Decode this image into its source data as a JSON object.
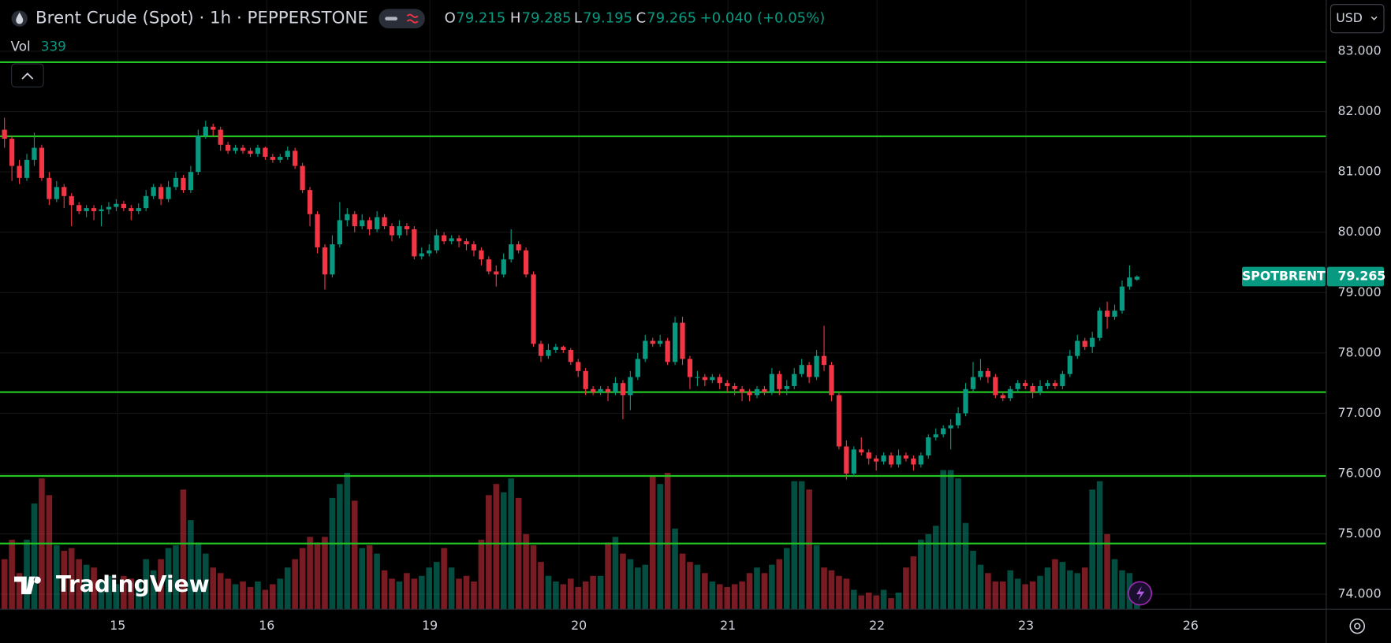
{
  "chart_data": {
    "type": "candlestick",
    "title": "Brent Crude (Spot) · 1h · PEPPERSTONE",
    "ohlc_labels": [
      "O",
      "H",
      "L",
      "C"
    ],
    "change_label": "+0.040 (+0.05%)",
    "volume_label": "Vol",
    "symbol_label": "SPOTBRENT",
    "currency": "USD",
    "logo": "TradingView",
    "up_color": "#089981",
    "down_color": "#f23645",
    "line_color": "#22c322",
    "xlim": [
      -0.6,
      177.4
    ],
    "ylim": [
      73.75,
      83.85
    ],
    "yticks": [
      {
        "value": 74,
        "label": "74.000"
      },
      {
        "value": 75,
        "label": "75.000"
      },
      {
        "value": 76,
        "label": "76.000"
      },
      {
        "value": 77,
        "label": "77.000"
      },
      {
        "value": 78,
        "label": "78.000"
      },
      {
        "value": 79,
        "label": "79.000"
      },
      {
        "value": 80,
        "label": "80.000"
      },
      {
        "value": 81,
        "label": "81.000"
      },
      {
        "value": 82,
        "label": "82.000"
      },
      {
        "value": 83,
        "label": "83.000"
      }
    ],
    "xticks": [
      {
        "value": 15.2,
        "label": "15"
      },
      {
        "value": 35.2,
        "label": "16"
      },
      {
        "value": 57.1,
        "label": "19"
      },
      {
        "value": 77.1,
        "label": "20"
      },
      {
        "value": 97.1,
        "label": "21"
      },
      {
        "value": 117.1,
        "label": "22"
      },
      {
        "value": 137.1,
        "label": "23"
      },
      {
        "value": 159.2,
        "label": "26"
      }
    ],
    "hlines": [
      82.82,
      81.59,
      77.35,
      75.96,
      74.84
    ],
    "open": [
      81.7,
      81.55,
      81.1,
      80.9,
      81.2,
      81.4,
      80.9,
      80.55,
      80.75,
      80.6,
      80.45,
      80.35,
      80.4,
      80.35,
      80.38,
      80.42,
      80.47,
      80.4,
      80.35,
      80.4,
      80.6,
      80.75,
      80.55,
      80.75,
      80.9,
      80.7,
      81.0,
      81.6,
      81.75,
      81.7,
      81.45,
      81.35,
      81.4,
      81.35,
      81.3,
      81.4,
      81.25,
      81.2,
      81.25,
      81.35,
      81.1,
      80.7,
      80.3,
      79.75,
      79.3,
      79.8,
      80.2,
      80.3,
      80.1,
      80.2,
      80.05,
      80.25,
      80.1,
      79.95,
      80.1,
      80.05,
      79.6,
      79.65,
      79.7,
      79.95,
      79.85,
      79.9,
      79.85,
      79.8,
      79.7,
      79.55,
      79.35,
      79.3,
      79.55,
      79.8,
      79.7,
      79.3,
      78.15,
      77.95,
      78.05,
      78.1,
      78.05,
      77.85,
      77.7,
      77.4,
      77.35,
      77.4,
      77.35,
      77.5,
      77.3,
      77.6,
      77.9,
      78.2,
      78.15,
      78.2,
      77.85,
      78.5,
      77.9,
      77.6,
      77.6,
      77.55,
      77.6,
      77.5,
      77.45,
      77.4,
      77.35,
      77.3,
      77.4,
      77.35,
      77.65,
      77.4,
      77.45,
      77.65,
      77.8,
      77.6,
      77.95,
      77.8,
      77.3,
      76.45,
      76.0,
      76.4,
      76.35,
      76.25,
      76.2,
      76.3,
      76.15,
      76.3,
      76.25,
      76.15,
      76.3,
      76.6,
      76.65,
      76.75,
      76.8,
      77.0,
      77.4,
      77.6,
      77.7,
      77.6,
      77.3,
      77.25,
      77.4,
      77.5,
      77.45,
      77.35,
      77.45,
      77.5,
      77.45,
      77.65,
      77.95,
      78.2,
      78.1,
      78.25,
      78.7,
      78.6,
      78.7,
      79.1,
      79.215
    ],
    "high": [
      81.9,
      81.6,
      81.2,
      81.3,
      81.65,
      81.45,
      81.0,
      80.85,
      80.8,
      80.65,
      80.5,
      80.45,
      80.45,
      80.45,
      80.5,
      80.55,
      80.52,
      80.45,
      80.48,
      80.7,
      80.8,
      80.8,
      80.85,
      81.0,
      80.95,
      81.1,
      81.7,
      81.85,
      81.8,
      81.75,
      81.5,
      81.45,
      81.45,
      81.4,
      81.45,
      81.42,
      81.3,
      81.3,
      81.42,
      81.4,
      81.15,
      80.75,
      80.35,
      79.8,
      79.95,
      80.5,
      80.4,
      80.35,
      80.3,
      80.25,
      80.35,
      80.3,
      80.15,
      80.2,
      80.15,
      80.1,
      79.75,
      79.8,
      80.05,
      80.0,
      79.95,
      79.95,
      79.9,
      79.85,
      79.75,
      79.6,
      79.45,
      79.65,
      80.05,
      79.85,
      79.75,
      79.35,
      78.2,
      78.15,
      78.15,
      78.12,
      78.08,
      77.9,
      77.75,
      77.45,
      77.45,
      77.45,
      77.6,
      77.55,
      77.7,
      78.0,
      78.3,
      78.25,
      78.3,
      78.25,
      78.6,
      78.6,
      77.95,
      77.7,
      77.65,
      77.65,
      77.65,
      77.55,
      77.5,
      77.45,
      77.4,
      77.45,
      77.45,
      77.75,
      77.7,
      77.55,
      77.75,
      77.9,
      77.85,
      78.05,
      78.45,
      77.85,
      77.35,
      76.55,
      76.45,
      76.6,
      76.4,
      76.3,
      76.35,
      76.35,
      76.4,
      76.35,
      76.3,
      76.35,
      76.65,
      76.75,
      76.8,
      76.9,
      77.1,
      77.5,
      77.85,
      77.9,
      77.75,
      77.65,
      77.35,
      77.45,
      77.55,
      77.55,
      77.5,
      77.55,
      77.55,
      77.55,
      77.7,
      78.05,
      78.3,
      78.25,
      78.35,
      78.75,
      78.85,
      78.8,
      79.2,
      79.45,
      79.285
    ],
    "low": [
      81.4,
      80.85,
      80.8,
      80.85,
      81.1,
      80.85,
      80.45,
      80.5,
      80.4,
      80.1,
      80.3,
      80.25,
      80.2,
      80.1,
      80.3,
      80.35,
      80.35,
      80.2,
      80.3,
      80.35,
      80.55,
      80.45,
      80.5,
      80.7,
      80.65,
      80.65,
      80.95,
      81.55,
      81.6,
      81.35,
      81.3,
      81.3,
      81.3,
      81.25,
      81.25,
      81.2,
      81.15,
      81.15,
      81.2,
      81.05,
      80.65,
      80.1,
      79.65,
      79.05,
      79.25,
      79.75,
      80.1,
      80.0,
      80.05,
      79.95,
      80.0,
      80.05,
      79.85,
      79.9,
      79.95,
      79.55,
      79.55,
      79.6,
      79.65,
      79.8,
      79.8,
      79.75,
      79.7,
      79.6,
      79.45,
      79.3,
      79.1,
      79.25,
      79.5,
      79.65,
      79.25,
      78.1,
      77.85,
      77.9,
      78.0,
      78.0,
      77.8,
      77.6,
      77.3,
      77.3,
      77.3,
      77.2,
      77.3,
      76.9,
      77.05,
      77.55,
      77.85,
      78.1,
      78.1,
      77.8,
      77.8,
      77.8,
      77.4,
      77.45,
      77.45,
      77.5,
      77.4,
      77.35,
      77.3,
      77.2,
      77.2,
      77.25,
      77.3,
      77.3,
      77.3,
      77.3,
      77.4,
      77.6,
      77.5,
      77.55,
      77.7,
      77.2,
      76.4,
      75.9,
      75.95,
      76.3,
      76.15,
      76.05,
      76.15,
      76.1,
      76.1,
      76.2,
      76.05,
      76.1,
      76.25,
      76.55,
      76.6,
      76.4,
      76.75,
      76.95,
      77.35,
      77.55,
      77.5,
      77.25,
      77.2,
      77.2,
      77.35,
      77.4,
      77.25,
      77.3,
      77.4,
      77.4,
      77.4,
      77.6,
      77.9,
      78.05,
      78.0,
      78.2,
      78.4,
      78.55,
      78.65,
      79.05,
      79.195
    ],
    "close": [
      81.55,
      81.1,
      80.9,
      81.2,
      81.4,
      80.9,
      80.55,
      80.75,
      80.6,
      80.45,
      80.35,
      80.4,
      80.35,
      80.38,
      80.42,
      80.47,
      80.4,
      80.35,
      80.4,
      80.6,
      80.75,
      80.55,
      80.75,
      80.9,
      80.7,
      81.0,
      81.6,
      81.75,
      81.7,
      81.45,
      81.35,
      81.4,
      81.35,
      81.3,
      81.4,
      81.25,
      81.2,
      81.25,
      81.35,
      81.1,
      80.7,
      80.3,
      79.75,
      79.3,
      79.8,
      80.2,
      80.3,
      80.1,
      80.2,
      80.05,
      80.25,
      80.1,
      79.95,
      80.1,
      80.05,
      79.6,
      79.65,
      79.7,
      79.95,
      79.85,
      79.9,
      79.85,
      79.8,
      79.7,
      79.55,
      79.35,
      79.3,
      79.55,
      79.8,
      79.7,
      79.3,
      78.15,
      77.95,
      78.05,
      78.1,
      78.05,
      77.85,
      77.7,
      77.4,
      77.35,
      77.4,
      77.35,
      77.5,
      77.3,
      77.6,
      77.9,
      78.2,
      78.15,
      78.2,
      77.85,
      78.5,
      77.9,
      77.6,
      77.6,
      77.55,
      77.6,
      77.5,
      77.45,
      77.4,
      77.35,
      77.3,
      77.4,
      77.35,
      77.65,
      77.4,
      77.45,
      77.65,
      77.8,
      77.6,
      77.95,
      77.8,
      77.3,
      76.45,
      76.0,
      76.4,
      76.35,
      76.25,
      76.2,
      76.3,
      76.15,
      76.3,
      76.25,
      76.15,
      76.3,
      76.6,
      76.65,
      76.75,
      76.8,
      77.0,
      77.4,
      77.6,
      77.7,
      77.6,
      77.3,
      77.25,
      77.4,
      77.5,
      77.45,
      77.35,
      77.45,
      77.5,
      77.45,
      77.65,
      77.95,
      78.2,
      78.1,
      78.25,
      78.7,
      78.6,
      78.7,
      79.1,
      79.25,
      79.265
    ],
    "volume": [
      1800,
      2500,
      1300,
      2500,
      3800,
      4700,
      4100,
      2300,
      2100,
      2200,
      1800,
      1600,
      1500,
      1000,
      1200,
      900,
      1200,
      1100,
      1000,
      1800,
      1400,
      1800,
      2200,
      2300,
      4300,
      3200,
      2400,
      2000,
      1500,
      1300,
      1100,
      900,
      1000,
      800,
      1000,
      700,
      900,
      1100,
      1500,
      1800,
      2200,
      2600,
      2400,
      2600,
      4000,
      4500,
      4900,
      3900,
      2200,
      2300,
      2000,
      1400,
      1100,
      1000,
      1300,
      1100,
      1200,
      1500,
      1700,
      2200,
      1500,
      1100,
      1200,
      1000,
      2500,
      4100,
      4500,
      4200,
      4700,
      4000,
      2700,
      2300,
      1700,
      1200,
      1000,
      900,
      1100,
      800,
      1000,
      1200,
      1200,
      2400,
      2600,
      2000,
      1800,
      1500,
      1600,
      4800,
      4500,
      4900,
      2900,
      2000,
      1700,
      1600,
      1300,
      1000,
      900,
      800,
      900,
      1000,
      1300,
      1500,
      1300,
      1600,
      1800,
      2200,
      4600,
      4600,
      4300,
      2300,
      1500,
      1400,
      1200,
      1100,
      700,
      500,
      600,
      500,
      700,
      400,
      600,
      1500,
      1900,
      2500,
      2700,
      3000,
      5000,
      5000,
      4700,
      3100,
      2100,
      1600,
      1300,
      1000,
      1000,
      1400,
      1100,
      900,
      1000,
      1200,
      1500,
      1800,
      1700,
      1400,
      1300,
      1500,
      4300,
      4600,
      2700,
      1800,
      1400,
      1300,
      339
    ]
  }
}
